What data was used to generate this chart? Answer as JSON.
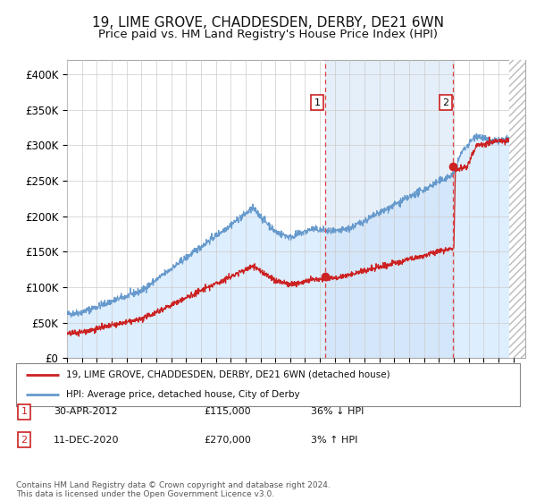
{
  "title": "19, LIME GROVE, CHADDESDEN, DERBY, DE21 6WN",
  "subtitle": "Price paid vs. HM Land Registry's House Price Index (HPI)",
  "title_fontsize": 11,
  "subtitle_fontsize": 9.5,
  "background_color": "#ffffff",
  "plot_bg_color": "#ffffff",
  "hpi_fill_color": "#ddeeff",
  "ylim": [
    0,
    420000
  ],
  "yticks": [
    0,
    50000,
    100000,
    150000,
    200000,
    250000,
    300000,
    350000,
    400000
  ],
  "ytick_labels": [
    "£0",
    "£50K",
    "£100K",
    "£150K",
    "£200K",
    "£250K",
    "£300K",
    "£350K",
    "£400K"
  ],
  "xlim_start": 1995.0,
  "xlim_end": 2025.8,
  "hpi_color": "#6699cc",
  "price_color": "#cc2222",
  "marker_color": "#cc2222",
  "vline_color": "#dd4444",
  "sale1_x": 2012.33,
  "sale1_y": 115000,
  "sale2_x": 2020.95,
  "sale2_y": 270000,
  "legend1_text": "19, LIME GROVE, CHADDESDEN, DERBY, DE21 6WN (detached house)",
  "legend2_text": "HPI: Average price, detached house, City of Derby",
  "table_row1": [
    "1",
    "30-APR-2012",
    "£115,000",
    "36% ↓ HPI"
  ],
  "table_row2": [
    "2",
    "11-DEC-2020",
    "£270,000",
    "3% ↑ HPI"
  ],
  "footnote": "Contains HM Land Registry data © Crown copyright and database right 2024.\nThis data is licensed under the Open Government Licence v3.0.",
  "grid_color": "#cccccc"
}
